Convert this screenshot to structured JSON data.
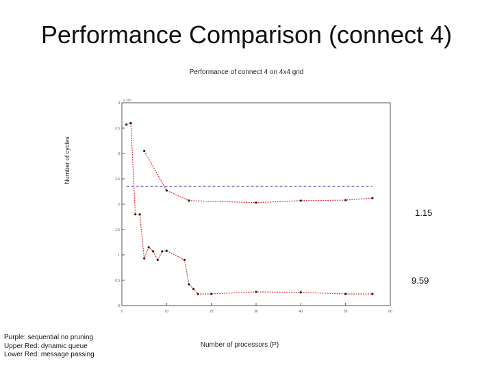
{
  "slide": {
    "title": "Performance Comparison (connect 4)"
  },
  "notes": {
    "line1": "Purple: sequential no pruning",
    "line2": "Upper Red: dynamic queue",
    "line3": "Lower Red: message passing"
  },
  "annotations": {
    "upper_ratio": "1.15",
    "lower_ratio": "9.59"
  },
  "colors": {
    "red_series": "#e03030",
    "marker": "#222222",
    "purple_line": "#3a3a8c",
    "axes": "#555555"
  },
  "chart_data": {
    "type": "line",
    "title": "Performance of connect 4 on 4x4 grid",
    "xlabel": "Number of processors (P)",
    "ylabel": "Number of cycles",
    "y_exponent_label": "x 10⁶",
    "xlim": [
      0,
      60
    ],
    "ylim": [
      0,
      4
    ],
    "xticks": [
      0,
      10,
      20,
      30,
      40,
      50,
      60
    ],
    "yticks": [
      0,
      0.5,
      1,
      1.5,
      2,
      2.5,
      3,
      3.5,
      4
    ],
    "grid": false,
    "series": [
      {
        "name": "Purple: sequential no pruning",
        "style": "dashed",
        "x": [
          1,
          56
        ],
        "y": [
          2.35,
          2.35
        ]
      },
      {
        "name": "Upper Red: dynamic queue",
        "style": "dotted-markers",
        "x": [
          5,
          10,
          15,
          30,
          40,
          50,
          56
        ],
        "y": [
          3.05,
          2.27,
          2.07,
          2.03,
          2.07,
          2.08,
          2.12
        ]
      },
      {
        "name": "Lower Red: message passing",
        "style": "dotted-markers",
        "x": [
          1,
          2,
          3,
          4,
          5,
          6,
          7,
          8,
          9,
          10,
          14,
          15,
          16,
          17,
          20,
          30,
          40,
          50,
          56
        ],
        "y": [
          3.57,
          3.6,
          1.8,
          1.8,
          0.93,
          1.15,
          1.07,
          0.9,
          1.07,
          1.08,
          0.9,
          0.42,
          0.33,
          0.23,
          0.23,
          0.27,
          0.26,
          0.23,
          0.23
        ]
      }
    ]
  }
}
